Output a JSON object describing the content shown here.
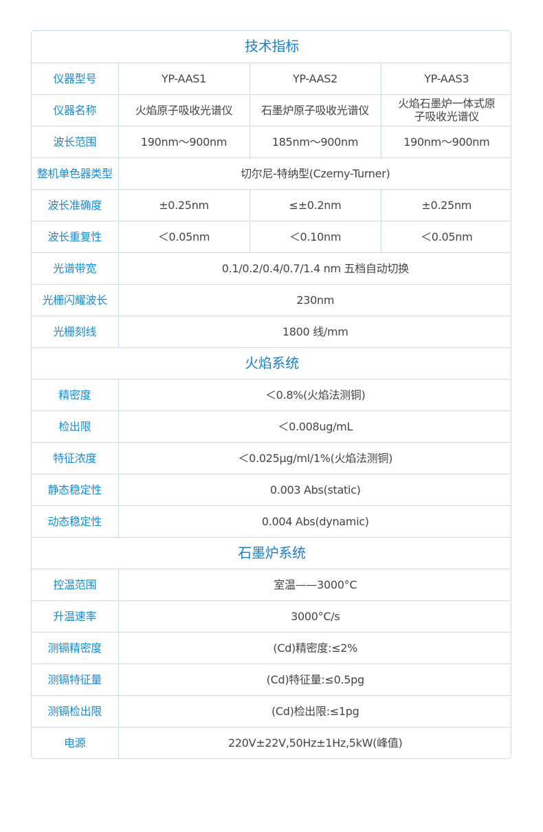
{
  "colors": {
    "label": "#1a8ad0",
    "section": "#1a80c8",
    "text": "#444444",
    "border": "#c5dced"
  },
  "rows": [
    {
      "section": "技术指标"
    },
    {
      "label": "仪器型号",
      "cells": [
        "YP-AAS1",
        "YP-AAS2",
        "YP-AAS3"
      ]
    },
    {
      "label": "仪器名称",
      "cells": [
        "火焰原子吸收光谱仪",
        "石墨炉原子吸收光谱仪",
        "火焰石墨炉一体式原子吸收光谱仪"
      ]
    },
    {
      "label": "波长范围",
      "cells": [
        "190nm～900nm",
        "185nm～900nm",
        "190nm～900nm"
      ]
    },
    {
      "label": "整机单色器类型",
      "cells": [
        "切尔尼-特纳型(Czerny-Turner)"
      ]
    },
    {
      "label": "波长准确度",
      "cells": [
        "±0.25nm",
        "≤±0.2nm",
        "±0.25nm"
      ]
    },
    {
      "label": "波长重复性",
      "cells": [
        "＜0.05nm",
        "＜0.10nm",
        "＜0.05nm"
      ]
    },
    {
      "label": "光谱带宽",
      "cells": [
        "0.1/0.2/0.4/0.7/1.4 nm 五档自动切换"
      ]
    },
    {
      "label": "光栅闪耀波长",
      "cells": [
        "230nm"
      ]
    },
    {
      "label": "光栅刻线",
      "cells": [
        "1800 线/mm"
      ]
    },
    {
      "section": "火焰系统"
    },
    {
      "label": "精密度",
      "cells": [
        "＜0.8%(火焰法测铜)"
      ]
    },
    {
      "label": "检出限",
      "cells": [
        "＜0.008ug/mL"
      ]
    },
    {
      "label": "特征浓度",
      "cells": [
        "＜0.025μg/ml/1%(火焰法测铜)"
      ]
    },
    {
      "label": "静态稳定性",
      "cells": [
        "0.003 Abs(static)"
      ]
    },
    {
      "label": "动态稳定性",
      "cells": [
        "0.004 Abs(dynamic)"
      ]
    },
    {
      "section": "石墨炉系统"
    },
    {
      "label": "控温范围",
      "cells": [
        "室温——3000°C"
      ]
    },
    {
      "label": "升温速率",
      "cells": [
        "3000°C/s"
      ]
    },
    {
      "label": "测镉精密度",
      "cells": [
        "(Cd)精密度:≤2%"
      ]
    },
    {
      "label": "测镉特征量",
      "cells": [
        "(Cd)特征量:≤0.5pg"
      ]
    },
    {
      "label": "测镉检出限",
      "cells": [
        "(Cd)检出限:≤1pg"
      ]
    },
    {
      "label": "电源",
      "cells": [
        "220V±22V,50Hz±1Hz,5kW(峰值)"
      ]
    }
  ]
}
